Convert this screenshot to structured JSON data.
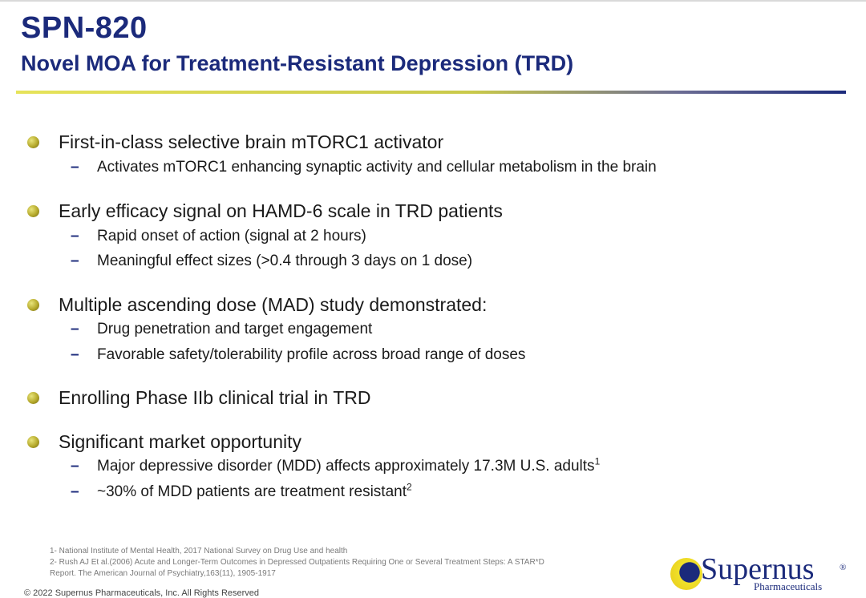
{
  "header": {
    "title": "SPN-820",
    "subtitle": "Novel MOA for Treatment-Resistant Depression (TRD)"
  },
  "bullets": [
    {
      "text": "First-in-class selective brain mTORC1 activator",
      "subs": [
        {
          "text": "Activates mTORC1 enhancing synaptic activity and cellular metabolism in the brain",
          "sup": ""
        }
      ]
    },
    {
      "text": "Early efficacy signal on HAMD-6 scale in TRD patients",
      "subs": [
        {
          "text": "Rapid onset of action (signal at 2 hours)",
          "sup": ""
        },
        {
          "text": "Meaningful effect sizes (>0.4 through 3 days on 1 dose)",
          "sup": ""
        }
      ]
    },
    {
      "text": "Multiple ascending dose (MAD) study demonstrated:",
      "subs": [
        {
          "text": "Drug penetration and target engagement",
          "sup": ""
        },
        {
          "text": "Favorable safety/tolerability profile across broad range of doses",
          "sup": ""
        }
      ]
    },
    {
      "text": "Enrolling Phase IIb clinical trial in TRD",
      "subs": []
    },
    {
      "text": "Significant market opportunity",
      "subs": [
        {
          "text": "Major depressive disorder (MDD) affects approximately 17.3M U.S. adults",
          "sup": "1"
        },
        {
          "text": "~30% of MDD patients are treatment resistant",
          "sup": "2"
        }
      ]
    }
  ],
  "dash": "–",
  "footnotes": [
    "1- National Institute of Mental Health, 2017 National Survey on Drug Use and health",
    "2- Rush AJ Et al.(2006)  Acute and Longer-Term Outcomes in Depressed Outpatients Requiring One or Several Treatment Steps: A STAR*D",
    "Report. The American Journal of Psychiatry,163(11), 1905-1917"
  ],
  "copyright": "© 2022 Supernus Pharmaceuticals, Inc. All Rights Reserved",
  "logo": {
    "name": "Supernus",
    "registered": "®",
    "tagline": "Pharmaceuticals"
  },
  "colors": {
    "title": "#1b2a7b",
    "bullet": "#b5a92b",
    "rule_start": "#e6e35a",
    "rule_end": "#1b2a7b"
  }
}
